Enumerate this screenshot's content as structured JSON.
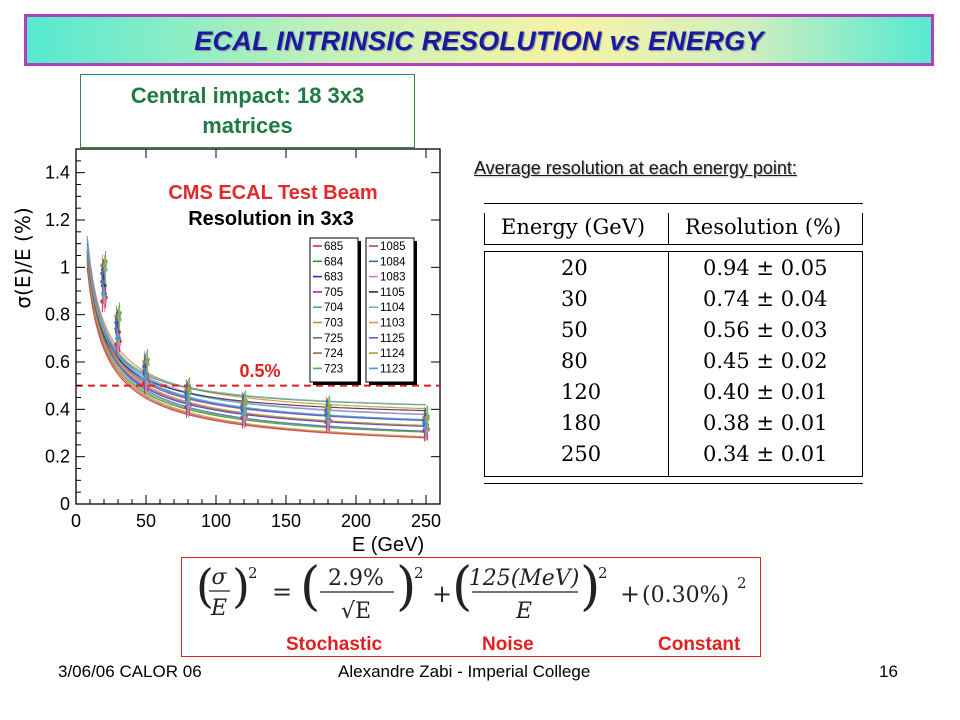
{
  "slide": {
    "title": "ECAL INTRINSIC RESOLUTION vs ENERGY",
    "impact_box": {
      "line1": "Central impact: 18 3x3",
      "line2": "matrices"
    },
    "avg_label": "Average resolution at each energy point:",
    "colors": {
      "title_border": "#b040c0",
      "title_text": "#1a1aa0",
      "impact_text": "#1f7a43",
      "red_accent": "#e22020"
    }
  },
  "chart_data": {
    "type": "scatter",
    "title": "CMS ECAL Test Beam",
    "subtitle": "Resolution in 3x3",
    "xlabel": "E (GeV)",
    "ylabel": "σ(E)/E (%)",
    "xlim": [
      0,
      260
    ],
    "ylim": [
      0,
      1.5
    ],
    "x_ticks": [
      "0",
      "50",
      "100",
      "150",
      "200",
      "250"
    ],
    "y_ticks": [
      "0",
      "0.2",
      "0.4",
      "0.6",
      "0.8",
      "1",
      "1.2",
      "1.4"
    ],
    "reference_line": {
      "y": 0.5,
      "label": "0.5%"
    },
    "grid": false,
    "legend_placement": "right",
    "legend_col1": [
      "685",
      "684",
      "683",
      "705",
      "704",
      "703",
      "725",
      "724",
      "723"
    ],
    "legend_col2": [
      "1085",
      "1084",
      "1083",
      "1105",
      "1104",
      "1103",
      "1125",
      "1124",
      "1123"
    ],
    "series_colors": [
      "#e02a2a",
      "#2a9a2a",
      "#2a2ae0",
      "#a030a0",
      "#30b0c0",
      "#c09030",
      "#707070",
      "#9a6a3a",
      "#5ab05a",
      "#b05050",
      "#3a6ab0",
      "#d07ad0",
      "#303030",
      "#70c0a0",
      "#e09060",
      "#6060c0",
      "#a0a040",
      "#40a0e0"
    ],
    "energies": [
      20,
      30,
      50,
      80,
      120,
      180,
      250
    ],
    "mean_resolution": [
      0.94,
      0.74,
      0.56,
      0.45,
      0.4,
      0.38,
      0.34
    ],
    "fit": {
      "stochastic": 2.9,
      "noise_mev": 125,
      "constant": 0.3
    }
  },
  "table": {
    "headers": [
      "Energy (GeV)",
      "Resolution (%)"
    ],
    "rows": [
      [
        "20",
        "0.94 ± 0.05"
      ],
      [
        "30",
        "0.74 ± 0.04"
      ],
      [
        "50",
        "0.56 ± 0.03"
      ],
      [
        "80",
        "0.45 ± 0.02"
      ],
      [
        "120",
        "0.40 ± 0.01"
      ],
      [
        "180",
        "0.38 ± 0.01"
      ],
      [
        "250",
        "0.34 ± 0.01"
      ]
    ]
  },
  "formula": {
    "lhs_num": "σ",
    "lhs_den": "E",
    "stoch_num": "2.9%",
    "stoch_den": "√E",
    "noise_num": "125(MeV)",
    "noise_den": "E",
    "constant": "(0.30%)",
    "equals": "=",
    "plus": "+",
    "power": "2",
    "labels": {
      "stochastic": "Stochastic",
      "noise": "Noise",
      "constant": "Constant"
    }
  },
  "footer": {
    "date": "3/06/06 CALOR 06",
    "author": "Alexandre Zabi - Imperial College",
    "page": "16"
  }
}
